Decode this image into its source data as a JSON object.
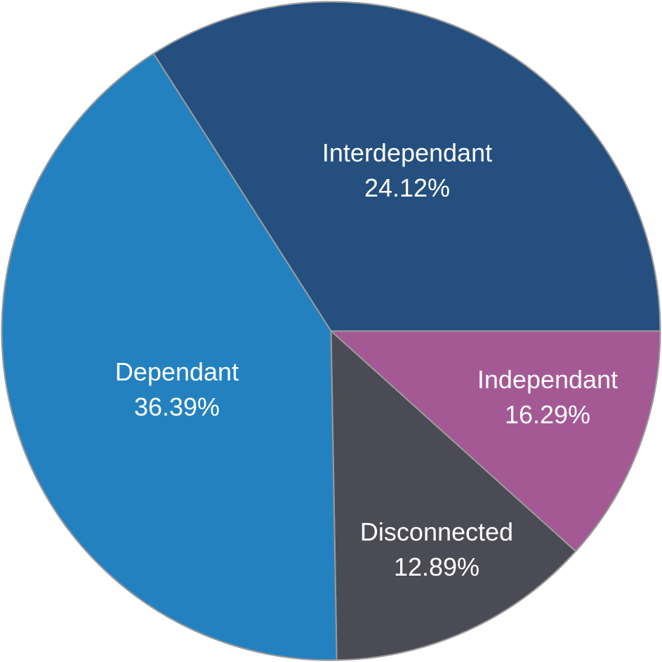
{
  "chart_data": {
    "type": "pie",
    "slices": [
      {
        "label": "Interdependant",
        "value": 24.12,
        "value_label": "24.12%",
        "color": "#244f7f"
      },
      {
        "label": "Independant",
        "value": 16.29,
        "value_label": "16.29%",
        "color": "#a45995"
      },
      {
        "label": "Disconnected",
        "value": 12.89,
        "value_label": "12.89%",
        "color": "#4b4b55"
      },
      {
        "label": "Dependant",
        "value": 36.39,
        "value_label": "36.39%",
        "color": "#2381c0"
      }
    ]
  }
}
